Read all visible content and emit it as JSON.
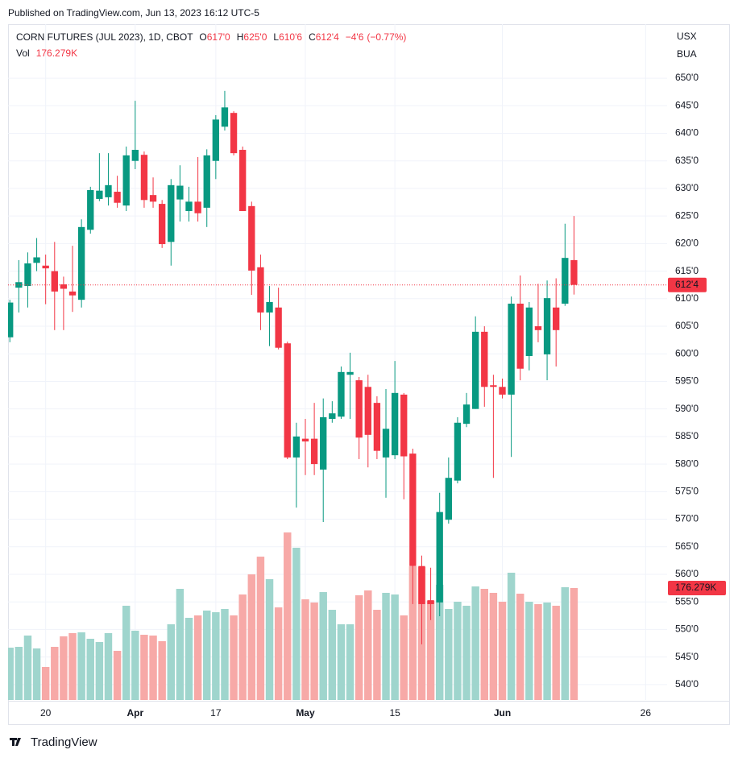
{
  "published": "Published on TradingView.com, Jun 13, 2023 16:12 UTC-5",
  "footer": "TradingView",
  "chart_data": {
    "type": "candlestick",
    "title": "CORN FUTURES (JUL 2023), 1D, CBOT",
    "ohlc_legend": [
      {
        "key": "O",
        "value": 617,
        "label": "617'0"
      },
      {
        "key": "H",
        "value": 625,
        "label": "625'0"
      },
      {
        "key": "L",
        "value": 610.75,
        "label": "610'6"
      },
      {
        "key": "C",
        "value": 612.5,
        "label": "612'4"
      }
    ],
    "change": {
      "value": -4.75,
      "label": "−4'6"
    },
    "change_percent": {
      "value": -0.77,
      "label": "(−0.77%)"
    },
    "volume_title": "Vol",
    "volume_last": {
      "value": 176.279,
      "label": "176.279K"
    },
    "last_price": {
      "value": 612.5,
      "label": "612'4"
    },
    "currency_labels": [
      "USX",
      "BUA"
    ],
    "open": [
      603,
      612.0,
      612.3,
      616.5,
      616.0,
      615.0,
      612.6,
      611.3,
      609.8,
      622.5,
      628.1,
      628.4,
      629.4,
      626.9,
      635.0,
      636.1,
      628.8,
      627.2,
      620.3,
      628.0,
      625.9,
      627.6,
      626.5,
      635.0,
      641.2,
      643.7,
      637.0,
      626.8,
      615.7,
      607.5,
      608.4,
      601.9,
      581.2,
      584.6,
      584.6,
      579.0,
      588.2,
      588.6,
      596.2,
      595.2,
      594.0,
      591.1,
      581.2,
      581.6,
      592.6,
      581.9,
      561.5,
      555.3,
      554.9,
      569.9,
      577.0,
      587.3,
      590.0,
      604.0,
      594.3,
      594.0,
      592.6,
      609.1,
      599.6,
      605.0,
      599.9,
      608.4,
      609.1,
      617.0
    ],
    "high": [
      609.8,
      617.0,
      618.4,
      621.0,
      618.0,
      620.3,
      614.0,
      619.6,
      624.4,
      630.3,
      636.4,
      636.4,
      632.3,
      637.6,
      645.9,
      636.7,
      632.0,
      627.9,
      631.7,
      634.2,
      630.3,
      635.7,
      637.1,
      643.3,
      647.7,
      644.0,
      637.6,
      627.6,
      618.0,
      612.3,
      612.0,
      602.2,
      587.5,
      588.2,
      591.1,
      591.9,
      591.4,
      597.7,
      600.2,
      595.8,
      596.2,
      592.3,
      593.6,
      598.7,
      592.9,
      582.8,
      563.4,
      561.2,
      574.8,
      581.2,
      588.5,
      592.9,
      606.8,
      605.0,
      596.2,
      595.5,
      610.4,
      614.2,
      609.4,
      612.7,
      613.3,
      613.7,
      623.6,
      625.0
    ],
    "low": [
      602.1,
      607.5,
      608.4,
      615.0,
      609.0,
      604.3,
      604.3,
      607.6,
      608.4,
      621.8,
      627.7,
      626.9,
      626.5,
      625.9,
      633.5,
      626.5,
      626.5,
      619.2,
      616.0,
      624.0,
      624.0,
      624.0,
      623.0,
      631.7,
      640.5,
      636.0,
      625.9,
      610.7,
      604.3,
      601.4,
      600.8,
      580.9,
      572.1,
      578.0,
      578.0,
      569.5,
      587.5,
      588.2,
      588.2,
      580.9,
      579.4,
      580.9,
      573.9,
      580.9,
      573.6,
      554.6,
      547.3,
      551.7,
      552.4,
      569.2,
      576.5,
      586.7,
      590.0,
      590.4,
      577.5,
      591.9,
      581.3,
      595.2,
      597.0,
      602.1,
      595.2,
      597.7,
      608.7,
      610.75
    ],
    "close": [
      609.3,
      613.0,
      616.4,
      617.5,
      615.5,
      611.3,
      611.8,
      610.6,
      623.0,
      629.7,
      629.6,
      630.6,
      627.4,
      636.0,
      637.0,
      627.9,
      627.6,
      619.9,
      630.6,
      630.5,
      627.6,
      625.5,
      636.0,
      642.5,
      644.7,
      636.4,
      625.9,
      615.1,
      607.5,
      609.4,
      601.1,
      581.2,
      585.0,
      584.1,
      580.0,
      588.5,
      589.2,
      596.7,
      596.7,
      584.8,
      585.3,
      582.4,
      586.4,
      592.9,
      581.4,
      561.5,
      554.6,
      554.6,
      571.3,
      577.5,
      587.5,
      590.8,
      604.0,
      594.0,
      594.0,
      592.6,
      609.1,
      597.3,
      608.4,
      604.3,
      610.1,
      604.3,
      617.4,
      612.5
    ],
    "volume": [
      82.4,
      83.7,
      101.5,
      81.2,
      52,
      83.7,
      100.2,
      105.3,
      106.5,
      96.4,
      91.3,
      105.3,
      77.4,
      148.4,
      109.1,
      102.7,
      101.5,
      92.6,
      119.2,
      175,
      129.4,
      133.2,
      140.8,
      138.2,
      143.3,
      133.2,
      166.1,
      197.8,
      225.7,
      190.2,
      145.8,
      263.8,
      239.7,
      158.5,
      153.5,
      169.9,
      142,
      119.2,
      119.2,
      164.9,
      172.5,
      142,
      168.7,
      166.1,
      133.2,
      210.5,
      209.3,
      156,
      181.4,
      143.3,
      154.7,
      148.4,
      178.8,
      175,
      168.7,
      154.7,
      200.4,
      167.4,
      154.7,
      150.9,
      153.5,
      148.4,
      177.6,
      176.279
    ],
    "up_color": "#089981",
    "down_color": "#f23645",
    "volume_up_color": "#9fd5cd",
    "volume_down_color": "#f7a9a7",
    "xlim": [
      -0.2,
      73.4
    ],
    "xticks": [
      {
        "value": 4,
        "label": "20"
      },
      {
        "value": 14,
        "label": "Apr"
      },
      {
        "value": 23,
        "label": "17"
      },
      {
        "value": 33,
        "label": "May"
      },
      {
        "value": 43,
        "label": "15"
      },
      {
        "value": 55,
        "label": "Jun"
      },
      {
        "value": 71,
        "label": "26"
      }
    ],
    "ylim": [
      537.2,
      659.8
    ],
    "yticks": [
      {
        "value": 540,
        "label": "540'0"
      },
      {
        "value": 545,
        "label": "545'0"
      },
      {
        "value": 550,
        "label": "550'0"
      },
      {
        "value": 555,
        "label": "555'0"
      },
      {
        "value": 560,
        "label": "560'0"
      },
      {
        "value": 565,
        "label": "565'0"
      },
      {
        "value": 570,
        "label": "570'0"
      },
      {
        "value": 575,
        "label": "575'0"
      },
      {
        "value": 580,
        "label": "580'0"
      },
      {
        "value": 585,
        "label": "585'0"
      },
      {
        "value": 590,
        "label": "590'0"
      },
      {
        "value": 595,
        "label": "595'0"
      },
      {
        "value": 600,
        "label": "600'0"
      },
      {
        "value": 605,
        "label": "605'0"
      },
      {
        "value": 610,
        "label": "610'0"
      },
      {
        "value": 615,
        "label": "615'0"
      },
      {
        "value": 620,
        "label": "620'0"
      },
      {
        "value": 625,
        "label": "625'0"
      },
      {
        "value": 630,
        "label": "630'0"
      },
      {
        "value": 635,
        "label": "635'0"
      },
      {
        "value": 640,
        "label": "640'0"
      },
      {
        "value": 645,
        "label": "645'0"
      },
      {
        "value": 650,
        "label": "650'0"
      }
    ],
    "volume_ylim": [
      0,
      1064
    ],
    "grid": true
  }
}
